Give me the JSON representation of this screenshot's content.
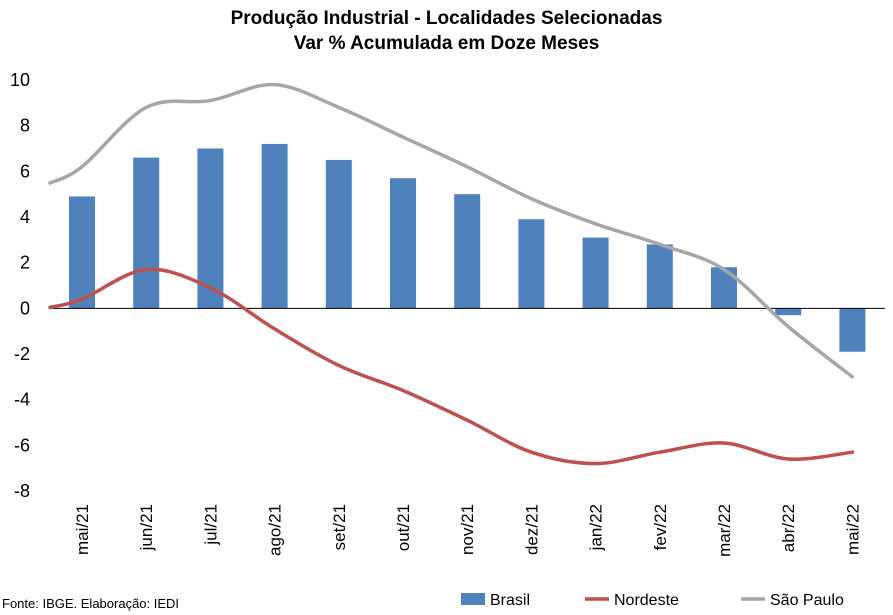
{
  "chart_data": {
    "type": "bar",
    "title": "Produção Industrial - Localidades Selecionadas",
    "subtitle": "Var % Acumulada em Doze Meses",
    "xlabel": "",
    "ylabel": "",
    "categories": [
      "mai/21",
      "jun/21",
      "jul/21",
      "ago/21",
      "set/21",
      "out/21",
      "nov/21",
      "dez/21",
      "jan/22",
      "fev/22",
      "mar/22",
      "abr/22",
      "mai/22"
    ],
    "ylim": [
      -8,
      10
    ],
    "yticks": [
      10,
      8,
      6,
      4,
      2,
      0,
      -2,
      -4,
      -6,
      -8
    ],
    "grid": false,
    "legend": "bottom-right",
    "series": [
      {
        "name": "Brasil",
        "type": "bar",
        "color": "#4F81BD",
        "values": [
          4.9,
          6.6,
          7.0,
          7.2,
          6.5,
          5.7,
          5.0,
          3.9,
          3.1,
          2.8,
          1.8,
          -0.3,
          -1.9
        ]
      },
      {
        "name": "Nordeste",
        "type": "line",
        "color": "#C0504D",
        "values": [
          0.4,
          1.7,
          0.9,
          -0.9,
          -2.5,
          -3.6,
          -4.9,
          -6.3,
          -6.8,
          -6.3,
          -5.9,
          -6.6,
          -6.3
        ]
      },
      {
        "name": "São Paulo",
        "type": "line",
        "color": "#A6A6A6",
        "values": [
          6.2,
          8.8,
          9.1,
          9.8,
          8.8,
          7.5,
          6.2,
          4.8,
          3.7,
          2.8,
          1.7,
          -0.8,
          -3.0
        ]
      }
    ]
  },
  "source": "Fonte: IBGE. Elaboração: IEDI"
}
